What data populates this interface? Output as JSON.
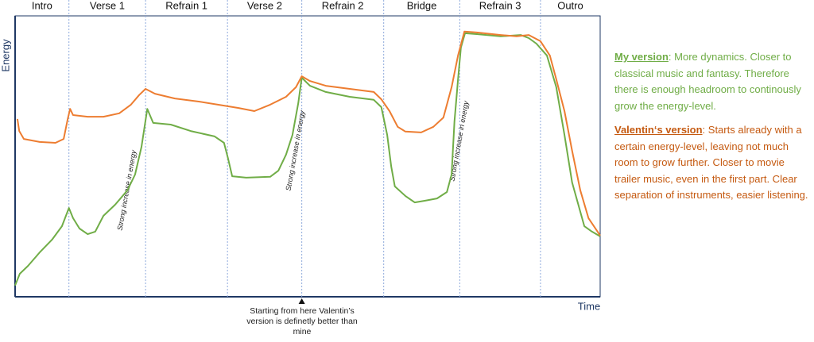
{
  "chart_data": {
    "type": "line",
    "x_label": "Time",
    "y_label": "Energy",
    "xlim": [
      0,
      100
    ],
    "ylim": [
      0,
      100
    ],
    "sections": [
      "Intro",
      "Verse 1",
      "Refrain 1",
      "Verse 2",
      "Refrain 2",
      "Bridge",
      "Refrain 3",
      "Outro"
    ],
    "section_bounds": [
      9.2,
      22.3,
      36.3,
      49.0,
      63.0,
      76.0,
      89.8
    ],
    "annotations": [
      "Strong increase in energy",
      "Strong increase in energy",
      "Strong increase in energy"
    ],
    "marker": {
      "x": 49.0,
      "text": "Starting from here Valentin’s version is definetly better than mine"
    },
    "series": [
      {
        "name": "My version",
        "color": "#70ad47",
        "description": ": More dynamics. Closer to classical music and fantasy. Therefore there is enough headroom to continously grow the energy-level.",
        "x": [
          0,
          0.8,
          2.2,
          4.2,
          6.3,
          8.0,
          9.2,
          9.9,
          11.0,
          12.4,
          13.7,
          15.1,
          17.1,
          19.2,
          20.5,
          21.6,
          22.6,
          23.6,
          26.6,
          30.0,
          34.1,
          35.7,
          36.4,
          37.1,
          39.5,
          43.6,
          45.0,
          46.3,
          47.4,
          48.4,
          49.0,
          50.4,
          53.1,
          57.2,
          61.3,
          62.6,
          63.6,
          64.3,
          64.9,
          66.7,
          68.3,
          70.1,
          72.1,
          73.8,
          74.6,
          75.1,
          75.7,
          76.2,
          76.9,
          78.9,
          83.0,
          86.4,
          87.8,
          89.1,
          90.9,
          92.5,
          93.9,
          95.2,
          97.3,
          98.6,
          100
        ],
        "values": [
          4.0,
          8.2,
          11.0,
          15.8,
          20.3,
          25.1,
          31.6,
          28.0,
          24.3,
          22.3,
          23.2,
          28.8,
          32.8,
          37.9,
          43.5,
          53.4,
          66.9,
          61.9,
          61.3,
          59.0,
          57.1,
          54.8,
          49.2,
          42.9,
          42.4,
          42.7,
          44.9,
          50.6,
          57.6,
          68.9,
          78.0,
          75.1,
          72.9,
          71.2,
          70.1,
          67.5,
          57.6,
          46.3,
          39.3,
          35.9,
          33.6,
          34.2,
          35.0,
          37.3,
          43.5,
          62.4,
          77.4,
          88.7,
          93.8,
          93.5,
          92.7,
          93.2,
          92.1,
          90.1,
          85.9,
          74.6,
          57.6,
          40.7,
          25.1,
          23.2,
          21.5
        ]
      },
      {
        "name": "Valentin‘s version",
        "color": "#ed7d31",
        "description": ": Starts already with a certain energy-level, leaving not much room to grow further. Closer to movie trailer music, even in the first part. Clear separation of instruments, easier listening.",
        "x": [
          0.4,
          0.7,
          1.5,
          4.2,
          6.9,
          8.3,
          9.0,
          9.4,
          9.9,
          12.4,
          15.1,
          17.8,
          19.8,
          21.2,
          22.3,
          23.9,
          27.3,
          31.4,
          35.5,
          38.2,
          40.9,
          43.6,
          46.3,
          48.0,
          49.0,
          50.4,
          53.1,
          57.2,
          61.3,
          62.6,
          64.0,
          65.4,
          66.7,
          69.4,
          71.5,
          73.2,
          74.6,
          75.7,
          76.8,
          78.9,
          83.0,
          85.7,
          87.8,
          89.8,
          91.4,
          92.5,
          93.9,
          95.2,
          96.6,
          98.0,
          100
        ],
        "values": [
          63.3,
          59.0,
          56.2,
          55.1,
          54.8,
          56.2,
          63.3,
          66.9,
          64.7,
          64.1,
          64.1,
          65.3,
          68.4,
          71.8,
          74.0,
          72.3,
          70.6,
          69.5,
          68.1,
          67.2,
          66.1,
          68.4,
          71.2,
          74.6,
          78.5,
          76.8,
          75.1,
          74.0,
          72.9,
          70.3,
          66.1,
          60.5,
          58.8,
          58.5,
          60.5,
          63.8,
          74.6,
          85.9,
          94.4,
          94.1,
          93.2,
          92.7,
          93.2,
          91.0,
          85.9,
          77.4,
          66.1,
          52.0,
          37.9,
          28.0,
          21.8
        ]
      }
    ]
  }
}
